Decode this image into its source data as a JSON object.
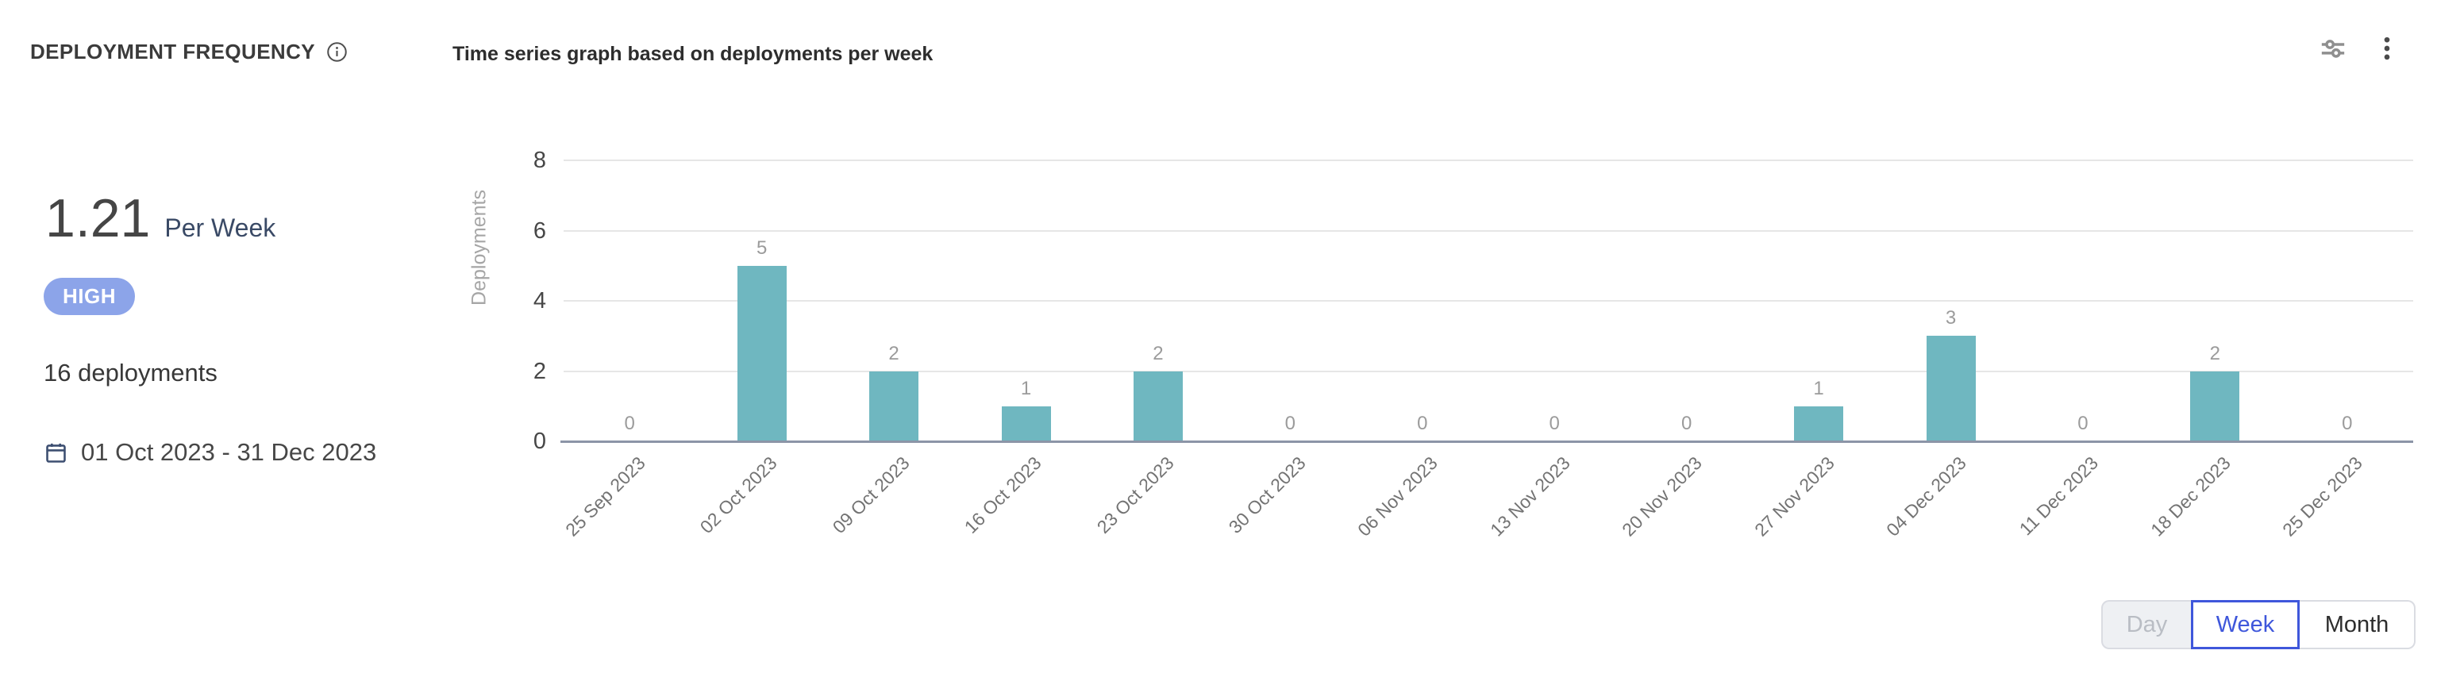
{
  "header": {
    "title": "DEPLOYMENT FREQUENCY",
    "subtitle": "Time series graph based on deployments per week"
  },
  "icons": {
    "info": "info-icon",
    "filters": "sliders-filter-icon",
    "menu": "kebab-menu-icon",
    "calendar": "calendar-icon"
  },
  "metric": {
    "value": "1.21",
    "unit": "Per Week",
    "badge": "HIGH",
    "deployments_total": "16 deployments",
    "date_range": "01 Oct 2023 - 31 Dec 2023"
  },
  "chart_data": {
    "type": "bar",
    "title": "Time series graph based on deployments per week",
    "xlabel": "",
    "ylabel": "Deployments",
    "categories": [
      "25 Sep 2023",
      "02 Oct 2023",
      "09 Oct 2023",
      "16 Oct 2023",
      "23 Oct 2023",
      "30 Oct 2023",
      "06 Nov 2023",
      "13 Nov 2023",
      "20 Nov 2023",
      "27 Nov 2023",
      "04 Dec 2023",
      "11 Dec 2023",
      "18 Dec 2023",
      "25 Dec 2023"
    ],
    "values": [
      0,
      5,
      2,
      1,
      2,
      0,
      0,
      0,
      0,
      1,
      3,
      0,
      2,
      0
    ],
    "yticks": [
      0,
      2,
      4,
      6,
      8
    ],
    "ylim": [
      0,
      8
    ],
    "grid": true,
    "legend_position": "none",
    "bar_color": "#6fb7c0",
    "value_labels": true
  },
  "time_toggle": {
    "options": [
      {
        "label": "Day",
        "state": "disabled"
      },
      {
        "label": "Week",
        "state": "selected"
      },
      {
        "label": "Month",
        "state": "default"
      }
    ]
  },
  "colors": {
    "bar_teal": "#6fb7c0",
    "badge_bg": "#8ca4e9",
    "selected_blue": "#3f57db",
    "navy_text": "#3a4a66",
    "axis_baseline": "#8c95a7",
    "gridline": "#e6e6e6"
  }
}
